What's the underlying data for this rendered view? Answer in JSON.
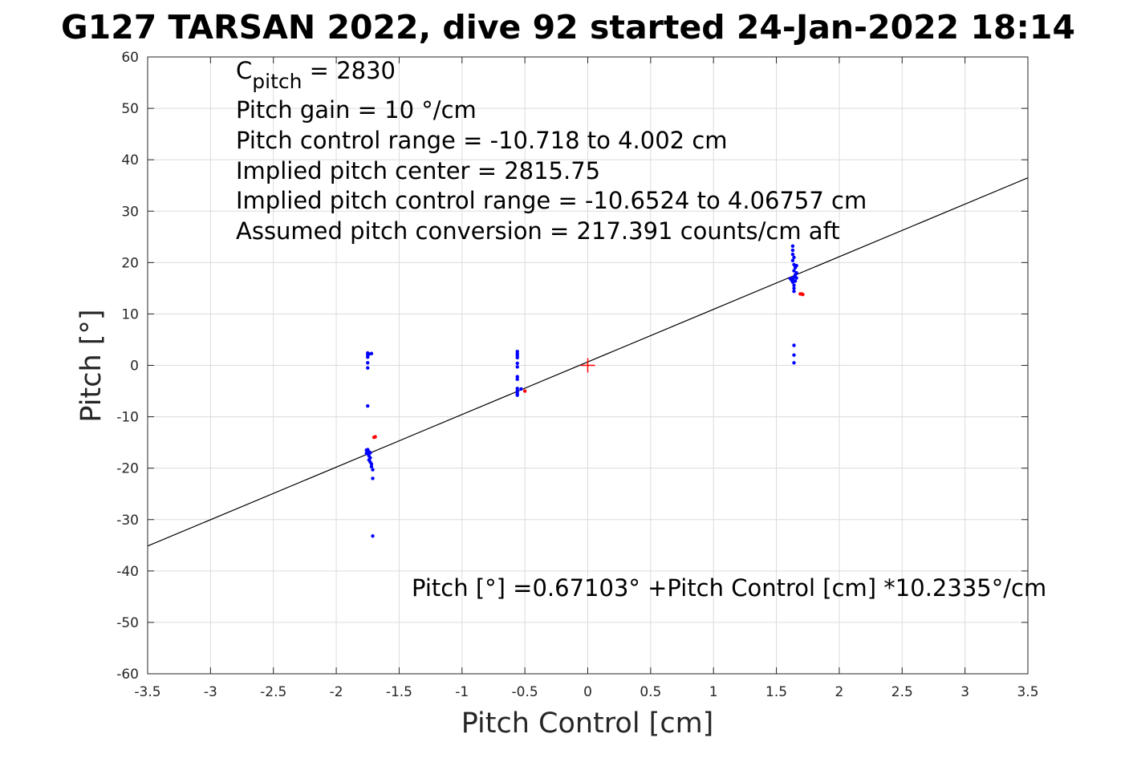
{
  "chart_data": {
    "type": "scatter",
    "title": "G127 TARSAN 2022, dive 92 started 24-Jan-2022 18:14",
    "xlabel": "Pitch Control [cm]",
    "ylabel": "Pitch [°]",
    "xlim": [
      -3.5,
      3.5
    ],
    "ylim": [
      -60,
      60
    ],
    "grid": true,
    "x_ticks": [
      -3.5,
      -3,
      -2.5,
      -2,
      -1.5,
      -1,
      -0.5,
      0,
      0.5,
      1,
      1.5,
      2,
      2.5,
      3,
      3.5
    ],
    "x_tick_labels": [
      "-3.5",
      "-3",
      "-2.5",
      "-2",
      "-1.5",
      "-1",
      "-0.5",
      "0",
      "0.5",
      "1",
      "1.5",
      "2",
      "2.5",
      "3",
      "3.5"
    ],
    "y_ticks": [
      60,
      50,
      40,
      30,
      20,
      10,
      0,
      -10,
      -20,
      -30,
      -40,
      -50,
      -60
    ],
    "y_tick_labels": [
      "60",
      "50",
      "40",
      "30",
      "20",
      "10",
      "0",
      "-10",
      "-20",
      "-30",
      "-40",
      "-50",
      "-60"
    ],
    "colors": {
      "data": "#0000ff",
      "excluded": "#ff0000",
      "fit": "#000000",
      "center": "#ff0000"
    },
    "annotations": {
      "c_pitch_base": "C",
      "c_pitch_sub": "pitch",
      "c_pitch_value": " = 2830",
      "line2": "Pitch gain = 10 °/cm",
      "line3": "Pitch control range = -10.718 to 4.002 cm",
      "line4": "Implied pitch center = 2815.75",
      "line5": "Implied pitch control range = -10.6524 to 4.06757 cm",
      "line6": "Assumed pitch conversion = 217.391 counts/cm aft",
      "fit_equation": "Pitch [°] =0.67103° +Pitch Control [cm] *10.2335°/cm"
    },
    "fit_line": {
      "intercept": 0.67103,
      "slope": 10.2335
    },
    "center_marker": {
      "x": 0,
      "y": 0
    },
    "series": [
      {
        "role": "data",
        "points": [
          [
            -1.75,
            2.4
          ],
          [
            -1.75,
            2.0
          ],
          [
            -1.75,
            1.6
          ],
          [
            -1.74,
            2.2
          ],
          [
            -1.75,
            0.5
          ],
          [
            -1.75,
            -0.5
          ],
          [
            -1.72,
            2.3
          ],
          [
            -1.75,
            -7.9
          ],
          [
            -1.75,
            -16.4
          ],
          [
            -1.74,
            -16.8
          ],
          [
            -1.75,
            -17.2
          ],
          [
            -1.74,
            -17.6
          ],
          [
            -1.73,
            -18.0
          ],
          [
            -1.74,
            -18.4
          ],
          [
            -1.73,
            -18.8
          ],
          [
            -1.72,
            -19.2
          ],
          [
            -1.72,
            -19.7
          ],
          [
            -1.71,
            -20.3
          ],
          [
            -1.71,
            -22.0
          ],
          [
            -1.71,
            -33.2
          ],
          [
            -1.76,
            -16.5
          ],
          [
            -1.76,
            -17.1
          ],
          [
            -1.73,
            -17.0
          ],
          [
            -0.56,
            2.7
          ],
          [
            -0.56,
            2.3
          ],
          [
            -0.56,
            1.9
          ],
          [
            -0.56,
            1.5
          ],
          [
            -0.56,
            0.4
          ],
          [
            -0.56,
            -0.3
          ],
          [
            -0.56,
            -2.2
          ],
          [
            -0.56,
            -2.7
          ],
          [
            -0.56,
            -4.5
          ],
          [
            -0.56,
            -5.0
          ],
          [
            -0.56,
            -5.4
          ],
          [
            -0.56,
            -5.8
          ],
          [
            -0.53,
            -4.6
          ],
          [
            1.63,
            23.2
          ],
          [
            1.63,
            22.4
          ],
          [
            1.63,
            21.6
          ],
          [
            1.64,
            21.0
          ],
          [
            1.63,
            20.4
          ],
          [
            1.64,
            19.6
          ],
          [
            1.65,
            19.0
          ],
          [
            1.64,
            18.4
          ],
          [
            1.66,
            18.0
          ],
          [
            1.65,
            17.6
          ],
          [
            1.64,
            17.2
          ],
          [
            1.63,
            16.8
          ],
          [
            1.62,
            16.6
          ],
          [
            1.61,
            16.9
          ],
          [
            1.63,
            16.2
          ],
          [
            1.64,
            15.6
          ],
          [
            1.64,
            15.0
          ],
          [
            1.64,
            14.4
          ],
          [
            1.66,
            19.4
          ],
          [
            1.66,
            17.0
          ],
          [
            1.65,
            16.4
          ],
          [
            1.64,
            3.9
          ],
          [
            1.64,
            2.0
          ],
          [
            1.64,
            0.5
          ]
        ]
      },
      {
        "role": "excluded",
        "points": [
          [
            -1.69,
            -13.9
          ],
          [
            -1.7,
            -14.0
          ],
          [
            -0.5,
            -5.0
          ],
          [
            1.69,
            13.9
          ],
          [
            1.7,
            13.9
          ],
          [
            1.71,
            13.8
          ]
        ]
      }
    ]
  }
}
